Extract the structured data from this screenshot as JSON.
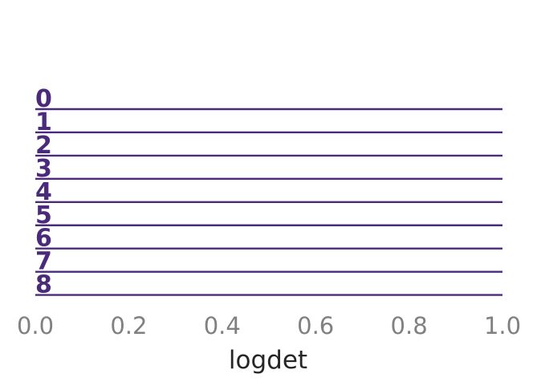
{
  "chart_data": {
    "type": "ridgeline",
    "xlabel": "logdet",
    "xlim": [
      0.0,
      1.0
    ],
    "xticks": [
      "0.0",
      "0.2",
      "0.4",
      "0.6",
      "0.8",
      "1.0"
    ],
    "rows": [
      "0",
      "1",
      "2",
      "3",
      "4",
      "5",
      "6",
      "7",
      "8"
    ],
    "line_color": "#4b2a7b",
    "label_color": "#4b2a7b",
    "tick_color": "#808080",
    "xlabel_color": "#262626",
    "grid": false
  }
}
